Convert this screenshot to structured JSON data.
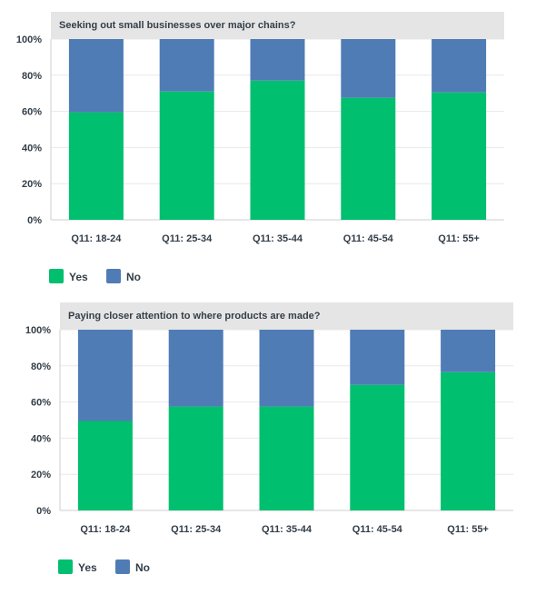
{
  "colors": {
    "yes": "#00bf6f",
    "no": "#507cb6",
    "header_bg": "#e5e5e5",
    "grid": "#e8e8e8",
    "axis": "#cfcfcf"
  },
  "chart_data": [
    {
      "type": "bar",
      "stacked": true,
      "title": "Seeking out small businesses over major chains?",
      "categories": [
        "Q11: 18-24",
        "Q11: 25-34",
        "Q11: 35-44",
        "Q11: 45-54",
        "Q11: 55+"
      ],
      "series": [
        {
          "name": "Yes",
          "values": [
            59.5,
            71,
            77,
            67.5,
            70.5
          ]
        },
        {
          "name": "No",
          "values": [
            40.5,
            29,
            23,
            32.5,
            29.5
          ]
        }
      ],
      "yticks": [
        "0%",
        "20%",
        "40%",
        "60%",
        "80%",
        "100%"
      ],
      "ylim": [
        0,
        100
      ],
      "grid": true,
      "legend_position": "bottom-left"
    },
    {
      "type": "bar",
      "stacked": true,
      "title": "Paying closer attention to where products are made?",
      "categories": [
        "Q11: 18-24",
        "Q11: 25-34",
        "Q11: 35-44",
        "Q11: 45-54",
        "Q11: 55+"
      ],
      "series": [
        {
          "name": "Yes",
          "values": [
            49.5,
            57.5,
            57.5,
            69.5,
            76.5
          ]
        },
        {
          "name": "No",
          "values": [
            50.5,
            42.5,
            42.5,
            30.5,
            23.5
          ]
        }
      ],
      "yticks": [
        "0%",
        "20%",
        "40%",
        "60%",
        "80%",
        "100%"
      ],
      "ylim": [
        0,
        100
      ],
      "grid": true,
      "legend_position": "bottom-left"
    }
  ]
}
